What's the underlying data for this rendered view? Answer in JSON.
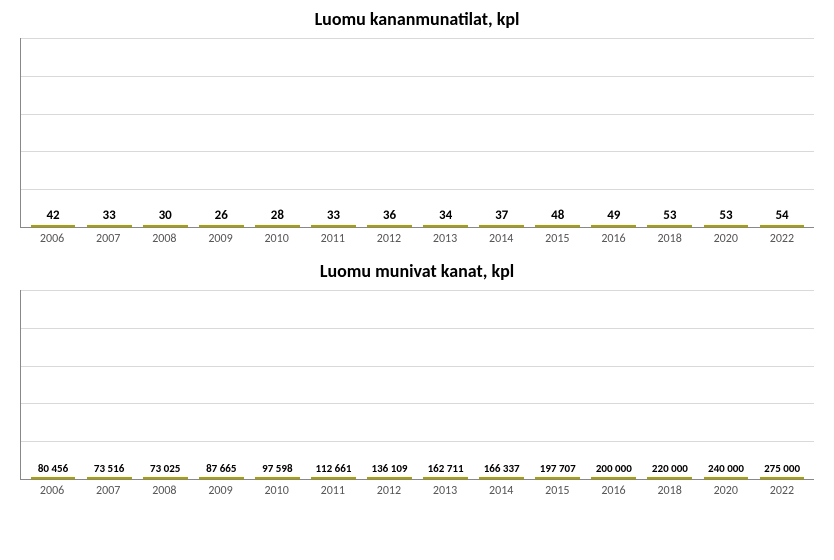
{
  "chart_top": {
    "type": "bar",
    "title": "Luomu kananmunatilat, kpl",
    "title_fontsize": 18,
    "label_fontsize": 13,
    "axis_fontsize": 12,
    "background_color": "#ffffff",
    "grid_color": "#d9d9d9",
    "border_color": "#a9a100",
    "bar_width_pct": 80,
    "ylim": [
      0,
      60
    ],
    "gridline_count": 6,
    "categories": [
      "2006",
      "2007",
      "2008",
      "2009",
      "2010",
      "2011",
      "2012",
      "2013",
      "2014",
      "2015",
      "2016",
      "2018",
      "2020",
      "2022"
    ],
    "values": [
      42,
      33,
      30,
      26,
      28,
      33,
      36,
      34,
      37,
      48,
      49,
      53,
      53,
      54
    ],
    "value_labels": [
      "42",
      "33",
      "30",
      "26",
      "28",
      "33",
      "36",
      "34",
      "37",
      "48",
      "49",
      "53",
      "53",
      "54"
    ],
    "bar_colors": [
      "#ffff00",
      "#ffff00",
      "#ffff00",
      "#ffff00",
      "#ffff00",
      "#ffff00",
      "#ffff00",
      "#ffff00",
      "#ffff00",
      "#ffff00",
      "#f5a700",
      "#f5a700",
      "#f5a700",
      "#f5a700"
    ]
  },
  "chart_bottom": {
    "type": "bar",
    "title": "Luomu munivat kanat, kpl",
    "title_fontsize": 18,
    "label_fontsize": 11,
    "axis_fontsize": 12,
    "background_color": "#ffffff",
    "grid_color": "#d9d9d9",
    "border_color": "#a9a100",
    "bar_width_pct": 80,
    "ylim": [
      0,
      300000
    ],
    "gridline_count": 6,
    "categories": [
      "2006",
      "2007",
      "2008",
      "2009",
      "2010",
      "2011",
      "2012",
      "2013",
      "2014",
      "2015",
      "2016",
      "2018",
      "2020",
      "2022"
    ],
    "values": [
      80456,
      73516,
      73025,
      87665,
      97598,
      112661,
      136109,
      162711,
      166337,
      197707,
      200000,
      220000,
      240000,
      275000
    ],
    "value_labels": [
      "80 456",
      "73 516",
      "73 025",
      "87 665",
      "97 598",
      "112 661",
      "136 109",
      "162 711",
      "166 337",
      "197 707",
      "200 000",
      "220 000",
      "240 000",
      "275 000"
    ],
    "bar_colors": [
      "#ffff00",
      "#ffff00",
      "#ffff00",
      "#ffff00",
      "#ffff00",
      "#ffff00",
      "#ffff00",
      "#ffff00",
      "#ffff00",
      "#ffff00",
      "#f5a700",
      "#f5a700",
      "#f5a700",
      "#f5a700"
    ]
  }
}
